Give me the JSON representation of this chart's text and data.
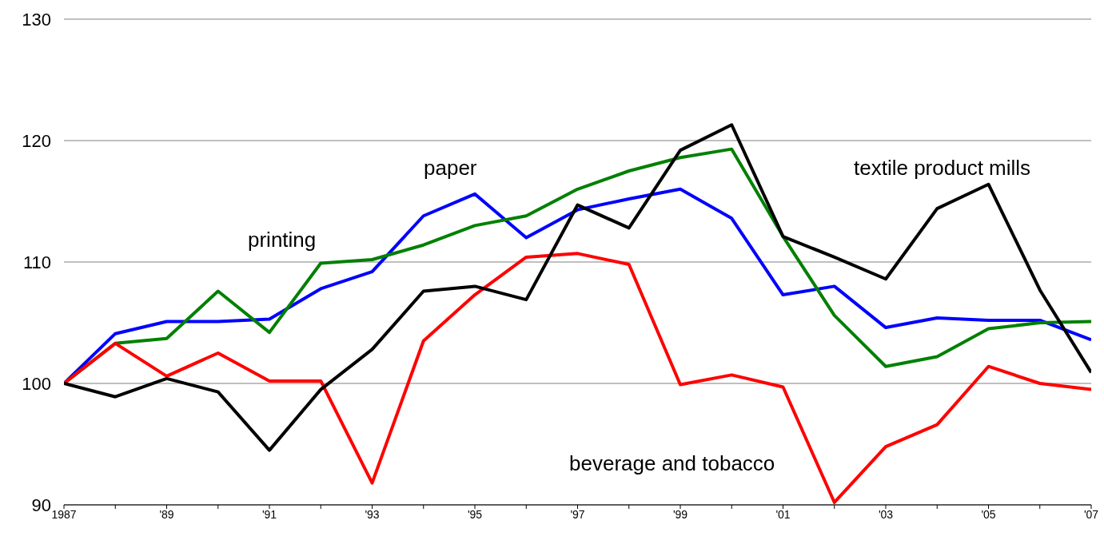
{
  "chart_data": {
    "type": "line",
    "categories": [
      "1987",
      null,
      "'89",
      null,
      "'91",
      null,
      "'93",
      null,
      "'95",
      null,
      "'97",
      null,
      "'99",
      null,
      "'01",
      null,
      "'03",
      null,
      "'05",
      null,
      "'07"
    ],
    "series": [
      {
        "name": "paper",
        "color": "#0000ff",
        "values": [
          100,
          104.1,
          105.1,
          105.1,
          105.3,
          107.8,
          109.2,
          113.8,
          115.6,
          112.0,
          114.3,
          115.2,
          116.0,
          113.6,
          107.3,
          108.0,
          104.6,
          105.4,
          105.2,
          105.2,
          103.6
        ]
      },
      {
        "name": "printing",
        "color": "#008000",
        "values": [
          100,
          103.3,
          103.7,
          107.6,
          104.2,
          109.9,
          110.2,
          111.4,
          113.0,
          113.8,
          116.0,
          117.5,
          118.6,
          119.3,
          112.1,
          105.6,
          101.4,
          102.2,
          104.5,
          105.0,
          105.1
        ]
      },
      {
        "name": "beverage and tobacco",
        "color": "#ff0000",
        "values": [
          100,
          103.3,
          100.6,
          102.5,
          100.2,
          100.2,
          91.8,
          103.5,
          107.3,
          110.4,
          110.7,
          109.8,
          99.9,
          100.7,
          99.7,
          90.2,
          94.8,
          96.6,
          101.4,
          100.0,
          99.5
        ]
      },
      {
        "name": "textile product mills",
        "color": "#000000",
        "values": [
          100,
          98.9,
          100.4,
          99.3,
          94.5,
          99.5,
          102.8,
          107.6,
          108.0,
          106.9,
          114.7,
          112.8,
          119.2,
          121.3,
          112.1,
          110.4,
          108.6,
          114.4,
          116.4,
          107.7,
          100.9
        ]
      }
    ],
    "ylim": [
      90,
      130
    ],
    "yticks": [
      90,
      100,
      110,
      120,
      130
    ],
    "grid": "y",
    "marker": "none",
    "line_style": "solid"
  }
}
